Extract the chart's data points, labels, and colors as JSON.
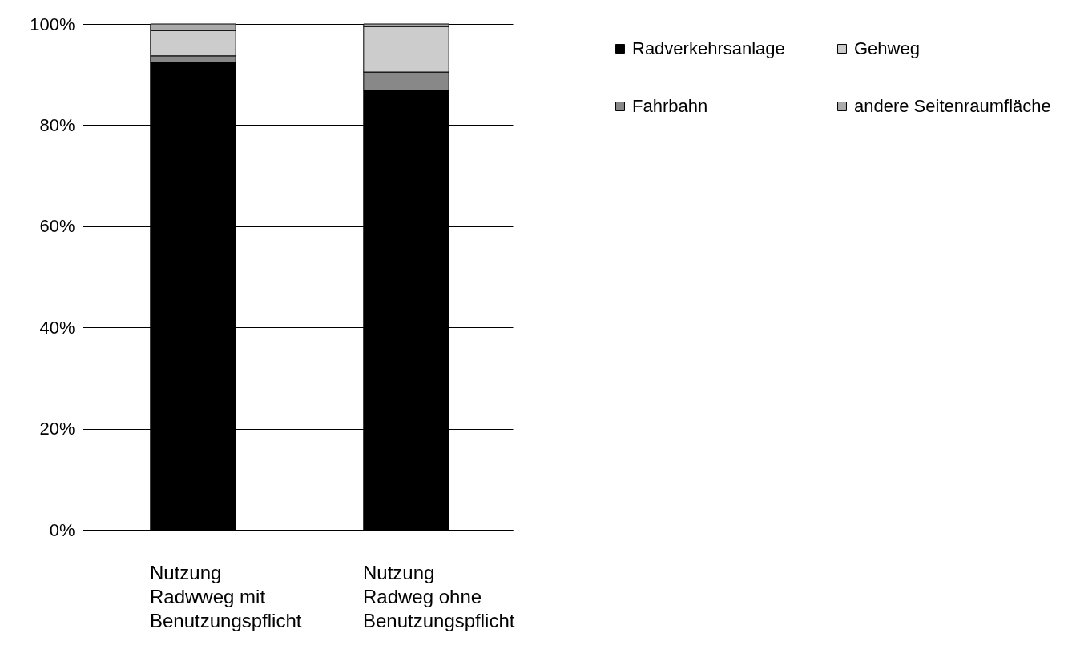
{
  "chart_data": {
    "type": "bar",
    "stacked": true,
    "categories": [
      "Nutzung\nRadwweg mit\nBenutzungspflicht",
      "Nutzung\nRadweg ohne\nBenutzungspflicht"
    ],
    "series": [
      {
        "name": "Radverkehrsanlage",
        "color": "#000000",
        "values": [
          92.4,
          86.9
        ]
      },
      {
        "name": "Fahrbahn",
        "color": "#888888",
        "values": [
          1.3,
          3.6
        ]
      },
      {
        "name": "Gehweg",
        "color": "#cccccc",
        "values": [
          5.0,
          9.0
        ]
      },
      {
        "name": "andere Seitenraumfläche",
        "color": "#aaaaaa",
        "values": [
          1.3,
          0.5
        ]
      }
    ],
    "ylim": [
      0,
      100
    ],
    "yticks": [
      {
        "value": 0,
        "label": "0%"
      },
      {
        "value": 20,
        "label": "20%"
      },
      {
        "value": 40,
        "label": "40%"
      },
      {
        "value": 60,
        "label": "60%"
      },
      {
        "value": 80,
        "label": "80%"
      },
      {
        "value": 100,
        "label": "100%"
      }
    ],
    "grid": "y",
    "legend": "top right"
  }
}
